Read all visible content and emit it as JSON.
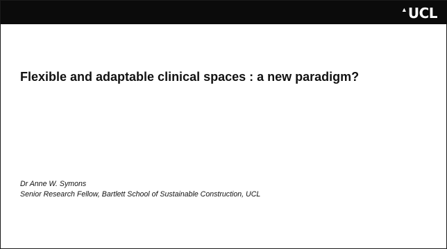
{
  "header": {
    "logo": {
      "mark": "▲",
      "text": "UCL"
    }
  },
  "slide": {
    "title": "Flexible and adaptable clinical spaces : a new paradigm?",
    "author": "Dr Anne W. Symons",
    "affiliation": "Senior Research Fellow, Bartlett School of Sustainable Construction, UCL"
  },
  "colors": {
    "header_background": "#0b0b0b",
    "logo_text": "#ffffff",
    "slide_background": "#ffffff",
    "body_text": "#111111"
  }
}
